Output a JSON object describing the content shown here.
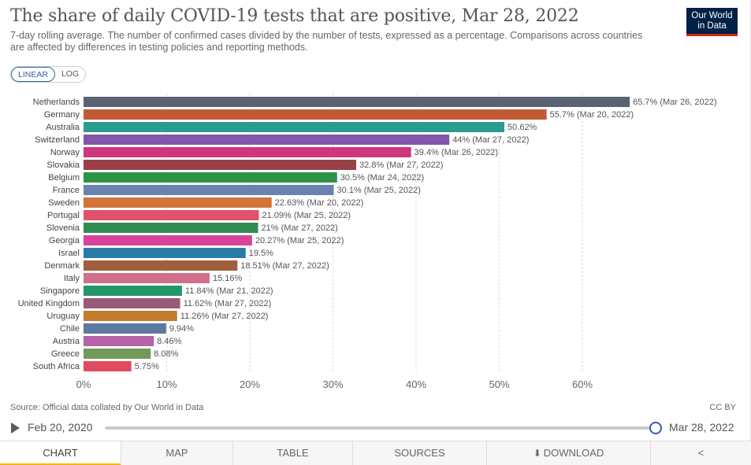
{
  "header": {
    "title": "The share of daily COVID-19 tests that are positive, Mar 28, 2022",
    "subtitle_line1": "7-day rolling average. The number of confirmed cases divided by the number of tests, expressed as a percentage. Comparisons across countries",
    "subtitle_line2": "are affected by differences in testing policies and reporting methods.",
    "logo_line1": "Our World",
    "logo_line2": "in Data"
  },
  "controls": {
    "linear_label": "LINEAR",
    "log_label": "LOG"
  },
  "chart_data": {
    "type": "bar",
    "orientation": "horizontal",
    "title": "The share of daily COVID-19 tests that are positive, Mar 28, 2022",
    "xlim": [
      0,
      68
    ],
    "x_ticks": [
      0,
      10,
      20,
      30,
      40,
      50,
      60
    ],
    "x_tick_labels": [
      "0%",
      "10%",
      "20%",
      "30%",
      "40%",
      "50%",
      "60%"
    ],
    "categories": [
      "Netherlands",
      "Germany",
      "Australia",
      "Switzerland",
      "Norway",
      "Slovakia",
      "Belgium",
      "France",
      "Sweden",
      "Portugal",
      "Slovenia",
      "Georgia",
      "Israel",
      "Denmark",
      "Italy",
      "Singapore",
      "United Kingdom",
      "Uruguay",
      "Chile",
      "Austria",
      "Greece",
      "South Africa"
    ],
    "values": [
      65.7,
      55.7,
      50.62,
      44,
      39.4,
      32.8,
      30.5,
      30.1,
      22.63,
      21.09,
      21,
      20.27,
      19.5,
      18.51,
      15.16,
      11.84,
      11.62,
      11.26,
      9.94,
      8.46,
      8.08,
      5.75
    ],
    "labels": [
      "65.7% (Mar 26, 2022)",
      "55.7% (Mar 20, 2022)",
      "50.62%",
      "44% (Mar 27, 2022)",
      "39.4% (Mar 26, 2022)",
      "32.8% (Mar 27, 2022)",
      "30.5% (Mar 24, 2022)",
      "30.1% (Mar 25, 2022)",
      "22.63% (Mar 20, 2022)",
      "21.09% (Mar 25, 2022)",
      "21% (Mar 27, 2022)",
      "20.27% (Mar 25, 2022)",
      "19.5%",
      "18.51% (Mar 27, 2022)",
      "15.16%",
      "11.84% (Mar 21, 2022)",
      "11.62% (Mar 27, 2022)",
      "11.26% (Mar 27, 2022)",
      "9.94%",
      "8.46%",
      "8.08%",
      "5.75%"
    ],
    "colors": [
      "#5b6273",
      "#c15a35",
      "#2a9d8f",
      "#8256a8",
      "#d0357f",
      "#994048",
      "#2c9346",
      "#6b82ae",
      "#d2733a",
      "#e0536b",
      "#2f8d52",
      "#d8449a",
      "#2a7ba8",
      "#a0603e",
      "#d06f88",
      "#23966a",
      "#995978",
      "#c47b2c",
      "#5b7a9e",
      "#b662a8",
      "#6f9a58",
      "#e24a5f"
    ],
    "grid": true
  },
  "footer": {
    "source": "Source: Official data collated by Our World in Data",
    "license": "CC BY",
    "timeline_start": "Feb 20, 2020",
    "timeline_end": "Mar 28, 2022"
  },
  "tabs": {
    "chart": "CHART",
    "map": "MAP",
    "table": "TABLE",
    "sources": "SOURCES",
    "download": "DOWNLOAD"
  },
  "icons": {
    "play": "play-icon",
    "download": "download-icon",
    "share": "share-icon"
  }
}
